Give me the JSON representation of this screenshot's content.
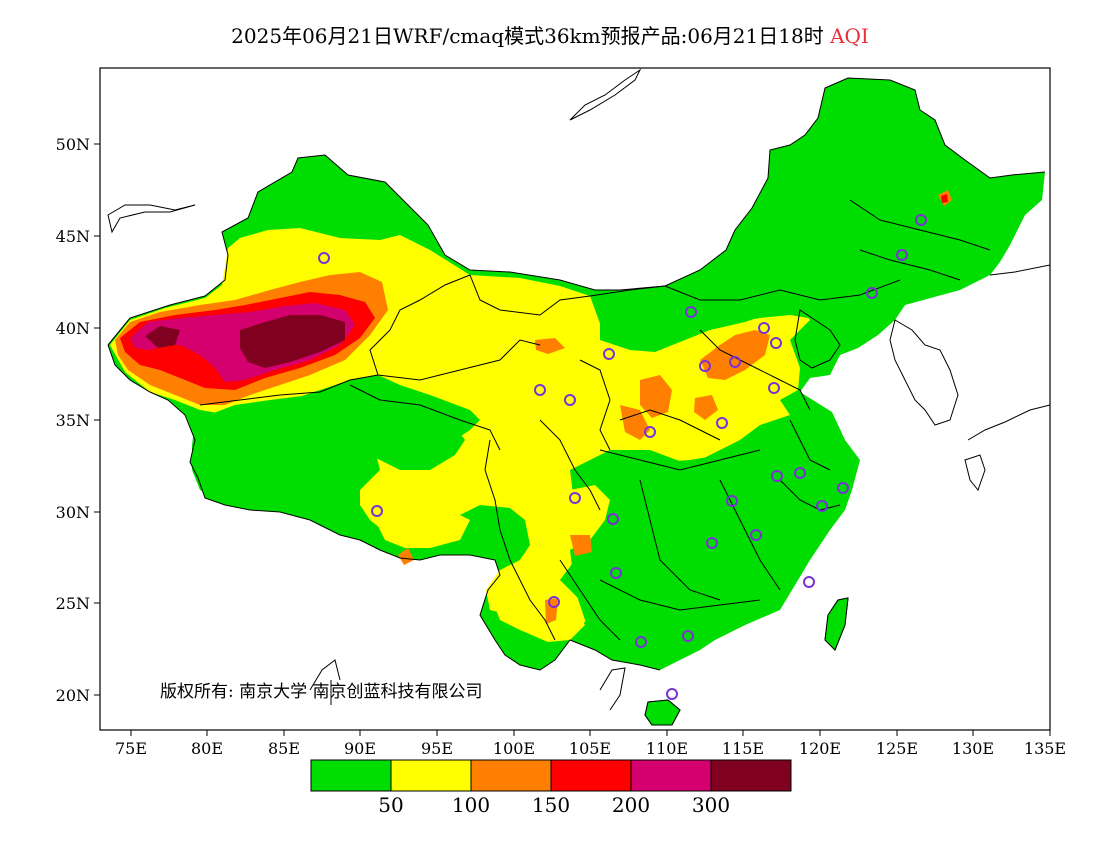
{
  "title": {
    "text": "2025年06月21日WRF/cmaq模式36km预报产品:06月21日18时",
    "variable": "AQI",
    "variable_color": "#e8303a"
  },
  "map": {
    "lat_labels": [
      "50N",
      "45N",
      "40N",
      "35N",
      "30N",
      "25N",
      "20N"
    ],
    "lon_labels": [
      "75E",
      "80E",
      "85E",
      "90E",
      "95E",
      "100E",
      "105E",
      "110E",
      "115E",
      "120E",
      "125E",
      "130E",
      "135E"
    ],
    "lat_range": [
      18,
      54
    ],
    "lon_range": [
      73,
      135
    ],
    "copyright": "版权所有: 南京大学  南京创蓝科技有限公司",
    "stations_color": "#7a32d8"
  },
  "legend": {
    "colors": [
      "#00dd00",
      "#ffff00",
      "#ff8000",
      "#ff0000",
      "#d4006e",
      "#800020"
    ],
    "labels": [
      "50",
      "100",
      "150",
      "200",
      "300"
    ]
  }
}
